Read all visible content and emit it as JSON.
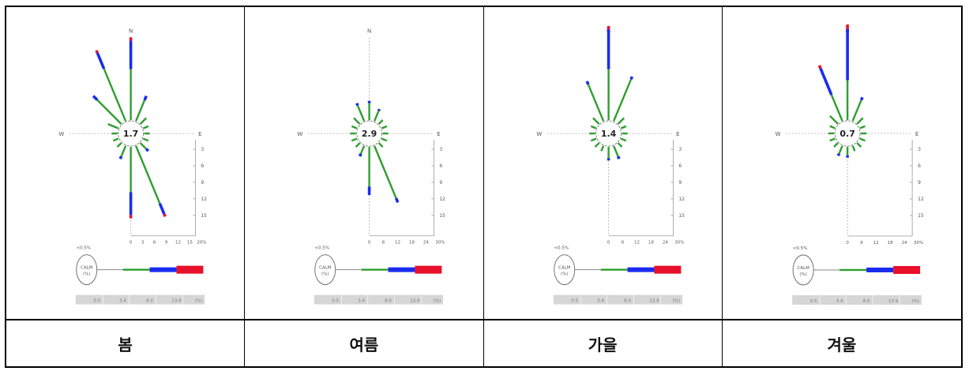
{
  "chart_data": [
    {
      "type": "windrose",
      "season": "봄",
      "calm_value": "1.7",
      "direction_labels": [
        "N",
        "W",
        "E"
      ],
      "radial_ticks": [
        "3",
        "6",
        "9",
        "12",
        "15"
      ],
      "speed_axis": [
        "0",
        "3",
        "6",
        "9",
        "12",
        "15",
        "20%"
      ],
      "calm_legend": {
        "prefix": "<0.5%",
        "label": "CALM",
        "unit": "(%)"
      },
      "speed_bins": [
        "0.5",
        "3.4",
        "8.0",
        "13.9",
        "(%)"
      ],
      "colors": {
        "low": "#2e9e2e",
        "mid": "#1b2cf0",
        "high": "#e8102a"
      },
      "petals": [
        {
          "dir": 0,
          "g": 9,
          "b": 5,
          "r": 0.6
        },
        {
          "dir": 22.5,
          "g": 4,
          "b": 0.8,
          "r": 0
        },
        {
          "dir": 45,
          "g": 1.5,
          "b": 0,
          "r": 0
        },
        {
          "dir": 67.5,
          "g": 1,
          "b": 0,
          "r": 0
        },
        {
          "dir": 90,
          "g": 1,
          "b": 0,
          "r": 0
        },
        {
          "dir": 112.5,
          "g": 1,
          "b": 0,
          "r": 0
        },
        {
          "dir": 135,
          "g": 1.5,
          "b": 0.5,
          "r": 0
        },
        {
          "dir": 157.5,
          "g": 11,
          "b": 2,
          "r": 0.5
        },
        {
          "dir": 180,
          "g": 8,
          "b": 4,
          "r": 0.6
        },
        {
          "dir": 202.5,
          "g": 2,
          "b": 0.5,
          "r": 0
        },
        {
          "dir": 225,
          "g": 1,
          "b": 0,
          "r": 0
        },
        {
          "dir": 247.5,
          "g": 1,
          "b": 0,
          "r": 0
        },
        {
          "dir": 270,
          "g": 1,
          "b": 0,
          "r": 0
        },
        {
          "dir": 292.5,
          "g": 2,
          "b": 0,
          "r": 0
        },
        {
          "dir": 315,
          "g": 6,
          "b": 1,
          "r": 0
        },
        {
          "dir": 337.5,
          "g": 10,
          "b": 3,
          "r": 0.5
        }
      ]
    },
    {
      "type": "windrose",
      "season": "여름",
      "calm_value": "2.9",
      "direction_labels": [
        "N",
        "W",
        "E"
      ],
      "radial_ticks": [
        "3",
        "6",
        "9",
        "12",
        "15"
      ],
      "speed_axis": [
        "0",
        "6",
        "12",
        "18",
        "24",
        "30%"
      ],
      "calm_legend": {
        "prefix": "<0.5%",
        "label": "CALM",
        "unit": "(%)"
      },
      "speed_bins": [
        "0.5",
        "3.4",
        "8.0",
        "13.9",
        "(%)"
      ],
      "colors": {
        "low": "#2e9e2e",
        "mid": "#1b2cf0",
        "high": "#e8102a"
      },
      "petals": [
        {
          "dir": 0,
          "g": 3,
          "b": 0.4,
          "r": 0
        },
        {
          "dir": 22.5,
          "g": 2,
          "b": 0.3,
          "r": 0
        },
        {
          "dir": 45,
          "g": 1,
          "b": 0,
          "r": 0
        },
        {
          "dir": 67.5,
          "g": 1,
          "b": 0,
          "r": 0
        },
        {
          "dir": 90,
          "g": 1,
          "b": 0,
          "r": 0
        },
        {
          "dir": 112.5,
          "g": 1,
          "b": 0,
          "r": 0
        },
        {
          "dir": 135,
          "g": 1,
          "b": 0,
          "r": 0
        },
        {
          "dir": 157.5,
          "g": 10,
          "b": 0.8,
          "r": 0
        },
        {
          "dir": 180,
          "g": 7,
          "b": 1.5,
          "r": 0
        },
        {
          "dir": 202.5,
          "g": 1.5,
          "b": 0.5,
          "r": 0
        },
        {
          "dir": 225,
          "g": 1,
          "b": 0,
          "r": 0
        },
        {
          "dir": 247.5,
          "g": 1,
          "b": 0,
          "r": 0
        },
        {
          "dir": 270,
          "g": 1,
          "b": 0,
          "r": 0
        },
        {
          "dir": 292.5,
          "g": 1,
          "b": 0,
          "r": 0
        },
        {
          "dir": 315,
          "g": 1.5,
          "b": 0,
          "r": 0
        },
        {
          "dir": 337.5,
          "g": 3,
          "b": 0.4,
          "r": 0
        }
      ]
    },
    {
      "type": "windrose",
      "season": "가을",
      "calm_value": "1.4",
      "direction_labels": [
        "N",
        "W",
        "E"
      ],
      "radial_ticks": [
        "3",
        "6",
        "9",
        "12",
        "15"
      ],
      "speed_axis": [
        "0",
        "6",
        "12",
        "18",
        "24",
        "30%"
      ],
      "calm_legend": {
        "prefix": "<0.5%",
        "label": "CALM",
        "unit": "(%)"
      },
      "speed_bins": [
        "0.5",
        "3.4",
        "8.0",
        "13.9",
        "(%)"
      ],
      "colors": {
        "low": "#2e9e2e",
        "mid": "#1b2cf0",
        "high": "#e8102a"
      },
      "petals": [
        {
          "dir": 0,
          "g": 9,
          "b": 7,
          "r": 0.6
        },
        {
          "dir": 22.5,
          "g": 8,
          "b": 0.5,
          "r": 0
        },
        {
          "dir": 45,
          "g": 1.5,
          "b": 0,
          "r": 0
        },
        {
          "dir": 67.5,
          "g": 1,
          "b": 0,
          "r": 0
        },
        {
          "dir": 90,
          "g": 1,
          "b": 0,
          "r": 0
        },
        {
          "dir": 112.5,
          "g": 1,
          "b": 0,
          "r": 0
        },
        {
          "dir": 135,
          "g": 1,
          "b": 0,
          "r": 0
        },
        {
          "dir": 157.5,
          "g": 2,
          "b": 0.5,
          "r": 0
        },
        {
          "dir": 180,
          "g": 2,
          "b": 0.4,
          "r": 0
        },
        {
          "dir": 202.5,
          "g": 1,
          "b": 0,
          "r": 0
        },
        {
          "dir": 225,
          "g": 1,
          "b": 0,
          "r": 0
        },
        {
          "dir": 247.5,
          "g": 1,
          "b": 0,
          "r": 0
        },
        {
          "dir": 270,
          "g": 1,
          "b": 0,
          "r": 0
        },
        {
          "dir": 292.5,
          "g": 1,
          "b": 0,
          "r": 0
        },
        {
          "dir": 315,
          "g": 1.5,
          "b": 0,
          "r": 0
        },
        {
          "dir": 337.5,
          "g": 7,
          "b": 0.6,
          "r": 0
        }
      ]
    },
    {
      "type": "windrose",
      "season": "겨울",
      "calm_value": "0.7",
      "direction_labels": [
        "N",
        "W",
        "E"
      ],
      "radial_ticks": [
        "3",
        "6",
        "9",
        "12",
        "15"
      ],
      "speed_axis": [
        "0",
        "6",
        "12",
        "18",
        "24",
        "30%"
      ],
      "calm_legend": {
        "prefix": "<0.5%",
        "label": "CALM",
        "unit": "(%)"
      },
      "speed_bins": [
        "0.5",
        "3.4",
        "8.0",
        "13.9",
        "(%)"
      ],
      "colors": {
        "low": "#2e9e2e",
        "mid": "#1b2cf0",
        "high": "#e8102a"
      },
      "petals": [
        {
          "dir": 0,
          "g": 7,
          "b": 9,
          "r": 0.8
        },
        {
          "dir": 22.5,
          "g": 4,
          "b": 0.5,
          "r": 0
        },
        {
          "dir": 45,
          "g": 1.5,
          "b": 0,
          "r": 0
        },
        {
          "dir": 67.5,
          "g": 1,
          "b": 0,
          "r": 0
        },
        {
          "dir": 90,
          "g": 1,
          "b": 0,
          "r": 0
        },
        {
          "dir": 112.5,
          "g": 1,
          "b": 0,
          "r": 0
        },
        {
          "dir": 135,
          "g": 1,
          "b": 0,
          "r": 0
        },
        {
          "dir": 157.5,
          "g": 1,
          "b": 0,
          "r": 0
        },
        {
          "dir": 180,
          "g": 1.5,
          "b": 0.4,
          "r": 0
        },
        {
          "dir": 202.5,
          "g": 1.5,
          "b": 0.4,
          "r": 0
        },
        {
          "dir": 225,
          "g": 1,
          "b": 0,
          "r": 0
        },
        {
          "dir": 247.5,
          "g": 1,
          "b": 0,
          "r": 0
        },
        {
          "dir": 270,
          "g": 1,
          "b": 0,
          "r": 0
        },
        {
          "dir": 292.5,
          "g": 1,
          "b": 0,
          "r": 0
        },
        {
          "dir": 315,
          "g": 2,
          "b": 0,
          "r": 0
        },
        {
          "dir": 337.5,
          "g": 5,
          "b": 5,
          "r": 0.6
        }
      ]
    }
  ]
}
